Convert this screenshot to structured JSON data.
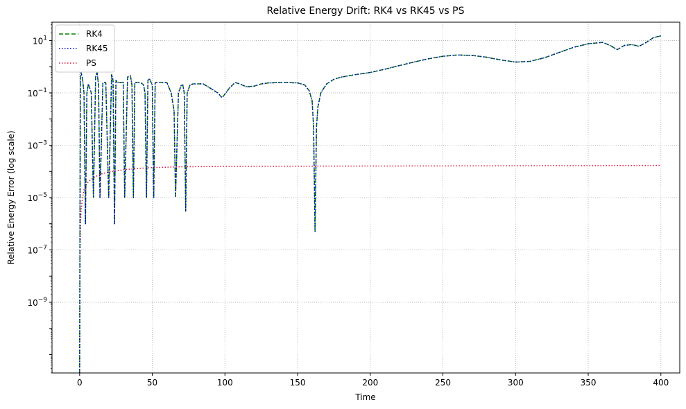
{
  "chart_data": {
    "type": "line",
    "title": "Relative Energy Drift: RK4 vs RK45 vs PS",
    "xlabel": "Time",
    "ylabel": "Relative Energy Error (log scale)",
    "xlim": [
      -19,
      413
    ],
    "ylim_log10": [
      -11.7,
      1.7
    ],
    "y_scale": "log",
    "x_ticks": [
      0,
      50,
      100,
      150,
      200,
      250,
      300,
      350,
      400
    ],
    "x_tick_labels": [
      "0",
      "50",
      "100",
      "150",
      "200",
      "250",
      "300",
      "350",
      "400"
    ],
    "y_ticks_log10": [
      -9,
      -7,
      -5,
      -3,
      -1,
      1
    ],
    "y_tick_labels": [
      {
        "base": "10",
        "exp": "−9"
      },
      {
        "base": "10",
        "exp": "−7"
      },
      {
        "base": "10",
        "exp": "−5"
      },
      {
        "base": "10",
        "exp": "−3"
      },
      {
        "base": "10",
        "exp": "−1"
      },
      {
        "base": "10",
        "exp": "1"
      }
    ],
    "grid": true,
    "legend_position": "top-left",
    "series": [
      {
        "name": "RK4",
        "color": "#008000",
        "dash": "dashed",
        "x": [
          0,
          0.5,
          1,
          2,
          3,
          4,
          5,
          6,
          8,
          9.5,
          11,
          12,
          13,
          14,
          16,
          18,
          20,
          22,
          23,
          24,
          25,
          26,
          27,
          28,
          30,
          31,
          33,
          35,
          36,
          37,
          38,
          40,
          42,
          44,
          45,
          46,
          47,
          48,
          50,
          51,
          52,
          53,
          55,
          60,
          63,
          65,
          66,
          68,
          70,
          71,
          72,
          73,
          74,
          76,
          78,
          80,
          85,
          90,
          95,
          98,
          100,
          103,
          107,
          110,
          115,
          120,
          125,
          130,
          140,
          150,
          155,
          158,
          160,
          161,
          162,
          163,
          164,
          166,
          168,
          170,
          175,
          180,
          190,
          200,
          210,
          220,
          230,
          240,
          250,
          260,
          270,
          280,
          290,
          300,
          310,
          320,
          330,
          340,
          350,
          355,
          360,
          365,
          370,
          375,
          380,
          385,
          390,
          395,
          400
        ],
        "y": [
          1e-12,
          0.4,
          0.6,
          0.35,
          0.1,
          1e-06,
          0.1,
          0.22,
          0.1,
          1e-05,
          0.4,
          0.6,
          0.2,
          1e-05,
          0.25,
          0.25,
          1e-05,
          0.5,
          0.3,
          1e-06,
          0.3,
          0.25,
          0.25,
          0.25,
          0.25,
          1e-05,
          0.4,
          0.45,
          0.2,
          1e-05,
          0.25,
          0.25,
          0.25,
          0.2,
          0.1,
          1e-05,
          0.3,
          0.35,
          0.2,
          1e-05,
          0.25,
          0.25,
          0.25,
          0.25,
          0.1,
          0.02,
          1e-05,
          0.1,
          0.2,
          0.2,
          0.1,
          3e-06,
          0.1,
          0.2,
          0.22,
          0.22,
          0.22,
          0.15,
          0.1,
          0.065,
          0.09,
          0.15,
          0.25,
          0.22,
          0.17,
          0.18,
          0.22,
          0.24,
          0.25,
          0.24,
          0.2,
          0.12,
          0.05,
          0.005,
          5e-07,
          0.005,
          0.03,
          0.1,
          0.15,
          0.22,
          0.33,
          0.4,
          0.5,
          0.6,
          0.8,
          1.1,
          1.5,
          2.0,
          2.5,
          2.8,
          2.7,
          2.3,
          1.8,
          1.5,
          1.6,
          2.2,
          3.5,
          5.5,
          7.5,
          8.0,
          8.5,
          6.5,
          4.5,
          6.5,
          7.0,
          6.0,
          8.5,
          13,
          15
        ]
      },
      {
        "name": "RK45",
        "color": "#0000cc",
        "dash": "dotted",
        "x": [
          0,
          0.5,
          1,
          2,
          3,
          4,
          5,
          6,
          8,
          9.5,
          11,
          12,
          13,
          14,
          16,
          18,
          20,
          22,
          23,
          24,
          25,
          26,
          27,
          28,
          30,
          31,
          33,
          35,
          36,
          37,
          38,
          40,
          42,
          44,
          45,
          46,
          47,
          48,
          50,
          51,
          52,
          53,
          55,
          60,
          63,
          65,
          66,
          68,
          70,
          71,
          72,
          73,
          74,
          76,
          78,
          80,
          85,
          90,
          95,
          98,
          100,
          103,
          107,
          110,
          115,
          120,
          125,
          130,
          140,
          150,
          155,
          158,
          160,
          161,
          162,
          163,
          164,
          166,
          168,
          170,
          175,
          180,
          190,
          200,
          210,
          220,
          230,
          240,
          250,
          260,
          270,
          280,
          290,
          300,
          310,
          320,
          330,
          340,
          350,
          355,
          360,
          365,
          370,
          375,
          380,
          385,
          390,
          395,
          400
        ],
        "y": [
          1e-12,
          0.4,
          0.6,
          0.35,
          0.1,
          1e-06,
          0.1,
          0.22,
          0.1,
          1e-05,
          0.4,
          0.6,
          0.2,
          1e-05,
          0.25,
          0.25,
          1e-05,
          0.5,
          0.3,
          1e-06,
          0.3,
          0.25,
          0.25,
          0.25,
          0.25,
          1e-05,
          0.4,
          0.45,
          0.2,
          1e-05,
          0.25,
          0.25,
          0.25,
          0.2,
          0.1,
          1e-05,
          0.3,
          0.35,
          0.2,
          1e-05,
          0.25,
          0.25,
          0.25,
          0.25,
          0.1,
          0.02,
          1e-05,
          0.1,
          0.2,
          0.2,
          0.1,
          3e-06,
          0.1,
          0.2,
          0.22,
          0.22,
          0.22,
          0.15,
          0.1,
          0.065,
          0.09,
          0.15,
          0.25,
          0.22,
          0.17,
          0.18,
          0.22,
          0.24,
          0.25,
          0.24,
          0.2,
          0.12,
          0.05,
          0.005,
          5e-07,
          0.005,
          0.03,
          0.1,
          0.15,
          0.22,
          0.33,
          0.4,
          0.5,
          0.6,
          0.8,
          1.1,
          1.5,
          2.0,
          2.5,
          2.8,
          2.7,
          2.3,
          1.8,
          1.5,
          1.6,
          2.2,
          3.5,
          5.5,
          7.5,
          8.0,
          8.5,
          6.5,
          4.5,
          6.5,
          7.0,
          6.0,
          8.5,
          13,
          15
        ]
      },
      {
        "name": "PS",
        "color": "#dc143c",
        "dash": "dotted",
        "x": [
          0,
          0.3,
          0.6,
          1,
          2,
          3,
          5,
          7,
          10,
          15,
          20,
          30,
          40,
          50,
          70,
          100,
          150,
          200,
          250,
          300,
          350,
          400
        ],
        "y": [
          1e-12,
          1e-07,
          1e-06,
          3e-06,
          1e-05,
          2e-05,
          3.5e-05,
          4.5e-05,
          6e-05,
          8e-05,
          9.5e-05,
          0.000115,
          0.00013,
          0.00014,
          0.00015,
          0.000155,
          0.000158,
          0.00016,
          0.000162,
          0.000164,
          0.000166,
          0.00017
        ]
      }
    ]
  }
}
